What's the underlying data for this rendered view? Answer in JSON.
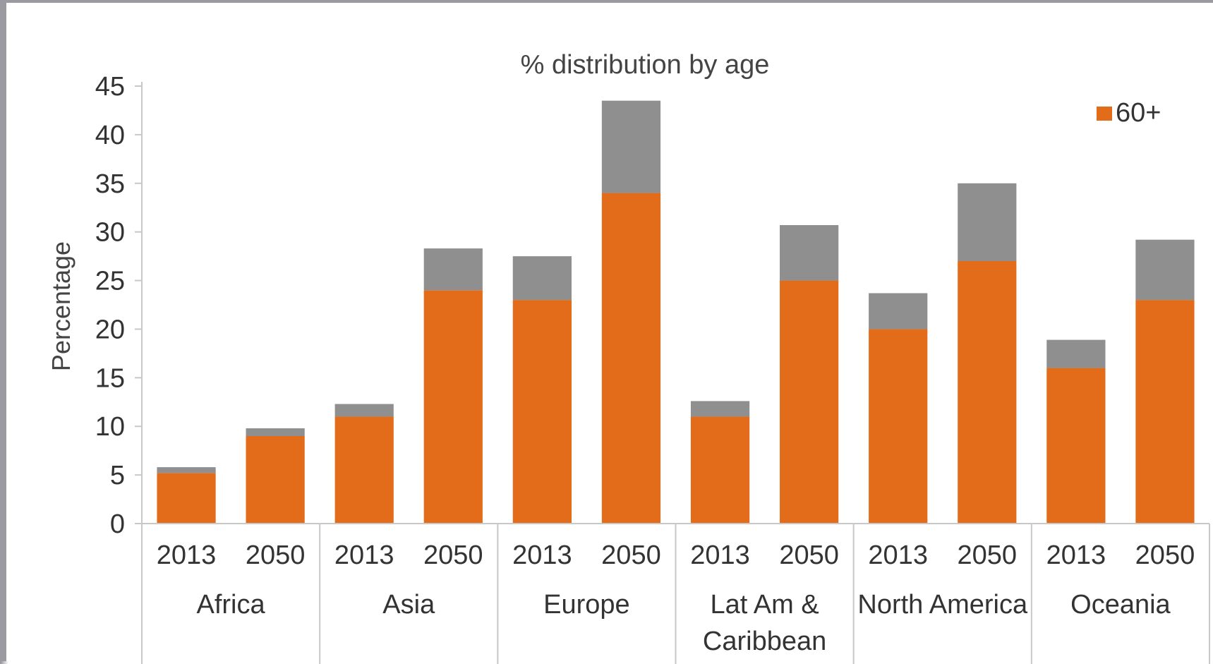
{
  "chart_data": {
    "type": "bar",
    "stacked": true,
    "title": "% distribution by age",
    "ylabel": "Percentage",
    "xlabel": "",
    "ylim": [
      0,
      45
    ],
    "yticks": [
      0,
      5,
      10,
      15,
      20,
      25,
      30,
      35,
      40,
      45
    ],
    "grid": false,
    "legend_position": "top-right",
    "groups": [
      "Africa",
      "Asia",
      "Europe",
      "Lat Am & Caribbean",
      "North America",
      "Oceania"
    ],
    "group_lines": [
      [
        "Africa"
      ],
      [
        "Asia"
      ],
      [
        "Europe"
      ],
      [
        "Lat Am &",
        "Caribbean"
      ],
      [
        "North America"
      ],
      [
        "Oceania"
      ]
    ],
    "categories": [
      "2013",
      "2050",
      "2013",
      "2050",
      "2013",
      "2050",
      "2013",
      "2050",
      "2013",
      "2050",
      "2013",
      "2050"
    ],
    "series": [
      {
        "name": "60+",
        "color": "#e36c1a",
        "values": [
          5.2,
          9.0,
          11.0,
          24.0,
          23.0,
          34.0,
          11.0,
          25.0,
          20.0,
          27.0,
          16.0,
          23.0
        ]
      },
      {
        "color": "#8f8f8f",
        "values": [
          0.6,
          0.8,
          1.3,
          4.3,
          4.5,
          9.5,
          1.6,
          5.7,
          3.7,
          8.0,
          2.9,
          6.2
        ]
      }
    ]
  }
}
